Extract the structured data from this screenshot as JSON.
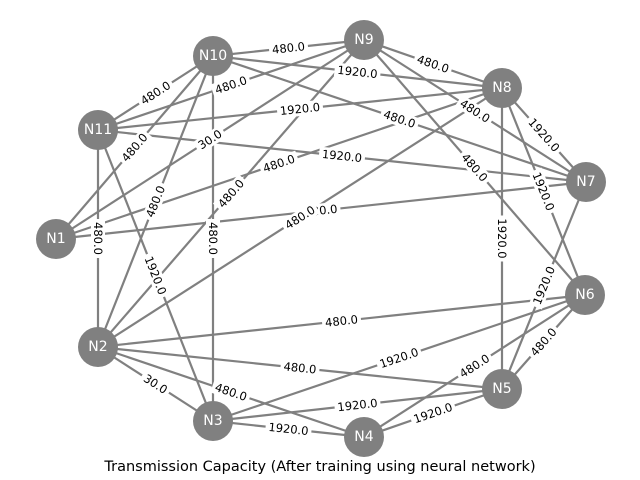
{
  "caption": "Transmission Capacity (After training using neural network)",
  "colors": {
    "node": "#808080",
    "edge": "#808080",
    "label_text": "#000000",
    "node_text": "#ffffff"
  },
  "nodes": [
    {
      "id": "N1",
      "label": "N1"
    },
    {
      "id": "N2",
      "label": "N2"
    },
    {
      "id": "N3",
      "label": "N3"
    },
    {
      "id": "N4",
      "label": "N4"
    },
    {
      "id": "N5",
      "label": "N5"
    },
    {
      "id": "N6",
      "label": "N6"
    },
    {
      "id": "N7",
      "label": "N7"
    },
    {
      "id": "N8",
      "label": "N8"
    },
    {
      "id": "N9",
      "label": "N9"
    },
    {
      "id": "N10",
      "label": "N10"
    },
    {
      "id": "N11",
      "label": "N11"
    }
  ],
  "edges": [
    {
      "from": "N10",
      "to": "N9",
      "label": "480.0"
    },
    {
      "from": "N11",
      "to": "N10",
      "label": "480.0"
    },
    {
      "from": "N9",
      "to": "N8",
      "label": "480.0"
    },
    {
      "from": "N10",
      "to": "N8",
      "label": "1920.0"
    },
    {
      "from": "N11",
      "to": "N9",
      "label": "480.0"
    },
    {
      "from": "N11",
      "to": "N8",
      "label": "1920.0"
    },
    {
      "from": "N10",
      "to": "N7",
      "label": "480.0"
    },
    {
      "from": "N8",
      "to": "N7",
      "label": "1920.0"
    },
    {
      "from": "N9",
      "to": "N7",
      "label": "480.0"
    },
    {
      "from": "N11",
      "to": "N7",
      "label": "1920.0"
    },
    {
      "from": "N1",
      "to": "N10",
      "label": "480.0"
    },
    {
      "from": "N1",
      "to": "N9",
      "label": "30.0"
    },
    {
      "from": "N1",
      "to": "N8",
      "label": "480.0"
    },
    {
      "from": "N1",
      "to": "N7",
      "label": "480.0"
    },
    {
      "from": "N9",
      "to": "N6",
      "label": "480.0"
    },
    {
      "from": "N8",
      "to": "N6",
      "label": "1920.0"
    },
    {
      "from": "N11",
      "to": "N2",
      "label": "480.0"
    },
    {
      "from": "N10",
      "to": "N2",
      "label": "480.0"
    },
    {
      "from": "N9",
      "to": "N2",
      "label": "480.0"
    },
    {
      "from": "N8",
      "to": "N2",
      "label": "480.0"
    },
    {
      "from": "N11",
      "to": "N3",
      "label": "1920.0"
    },
    {
      "from": "N10",
      "to": "N3",
      "label": "480.0"
    },
    {
      "from": "N8",
      "to": "N5",
      "label": "1920.0"
    },
    {
      "from": "N7",
      "to": "N5",
      "label": "1920.0"
    },
    {
      "from": "N2",
      "to": "N6",
      "label": "480.0"
    },
    {
      "from": "N2",
      "to": "N5",
      "label": "480.0"
    },
    {
      "from": "N2",
      "to": "N3",
      "label": "30.0"
    },
    {
      "from": "N2",
      "to": "N4",
      "label": "480.0"
    },
    {
      "from": "N3",
      "to": "N6",
      "label": "1920.0"
    },
    {
      "from": "N4",
      "to": "N6",
      "label": "480.0"
    },
    {
      "from": "N3",
      "to": "N5",
      "label": "1920.0"
    },
    {
      "from": "N3",
      "to": "N4",
      "label": "1920.0"
    },
    {
      "from": "N4",
      "to": "N5",
      "label": "1920.0"
    },
    {
      "from": "N5",
      "to": "N6",
      "label": "480.0"
    }
  ]
}
